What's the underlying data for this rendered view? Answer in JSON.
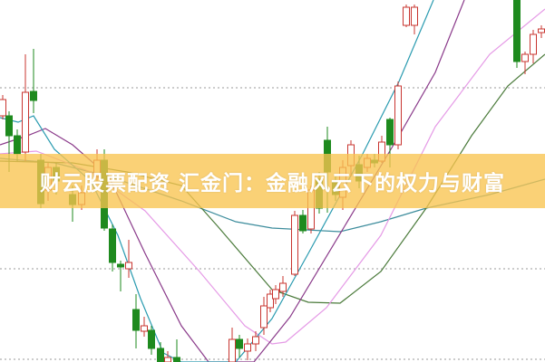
{
  "headline": "财云股票配资 汇金门：金融风云下的权力与财富",
  "colors": {
    "up_candle": "#c8342f",
    "down_candle": "#1e8a1e",
    "banner": "#f9c450",
    "ma_teal": "#2a9bb0",
    "ma_purple": "#8a3a8a",
    "ma_pink": "#e59ae6",
    "ma_green": "#4a7a3a",
    "ma_blue": "#3c8c9c",
    "grid": "#999999"
  },
  "icons": {
    "chart": "candlestick-chart"
  }
}
